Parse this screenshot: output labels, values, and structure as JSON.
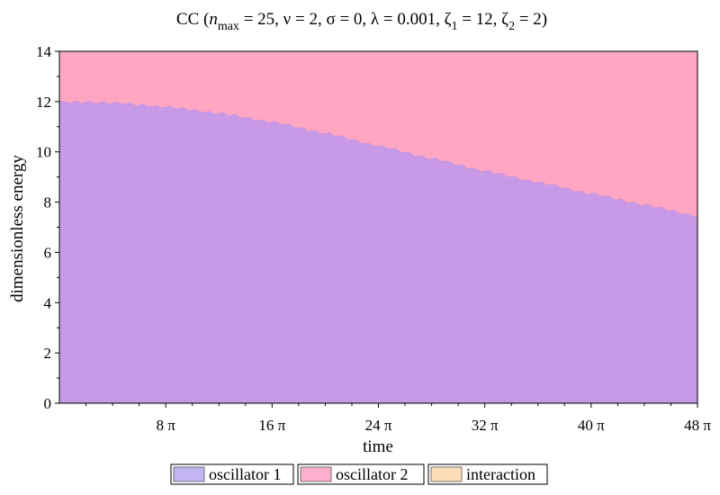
{
  "chart_data": {
    "type": "area",
    "title": {
      "prefix": "CC  (",
      "n": "n",
      "n_sub": "max",
      "rest1": " = 25, ν = 2, σ = 0, λ = 0.001, ζ",
      "zeta1_sub": "1",
      "rest2": " = 12, ζ",
      "zeta2_sub": "2",
      "rest3": " = 2)"
    },
    "xlabel": "time",
    "ylabel": "dimensionless energy",
    "xlim": [
      0,
      48
    ],
    "ylim": [
      0,
      14
    ],
    "x_unit": "π",
    "x_ticks": [
      {
        "value": 8,
        "label": "8 π"
      },
      {
        "value": 16,
        "label": "16 π"
      },
      {
        "value": 24,
        "label": "24 π"
      },
      {
        "value": 32,
        "label": "32 π"
      },
      {
        "value": 40,
        "label": "40 π"
      },
      {
        "value": 48,
        "label": "48 π"
      }
    ],
    "y_ticks": [
      {
        "value": 0,
        "label": "0"
      },
      {
        "value": 2,
        "label": "2"
      },
      {
        "value": 4,
        "label": "4"
      },
      {
        "value": 6,
        "label": "6"
      },
      {
        "value": 8,
        "label": "8"
      },
      {
        "value": 10,
        "label": "10"
      },
      {
        "value": 12,
        "label": "12"
      },
      {
        "value": 14,
        "label": "14"
      }
    ],
    "stacked": true,
    "x": [
      0,
      4,
      8,
      12,
      16,
      20,
      24,
      28,
      32,
      36,
      40,
      44,
      48
    ],
    "series": [
      {
        "name": "oscillator 1",
        "color": "#c799e6",
        "legend_color": "#c4b5f5",
        "values": [
          12.0,
          11.97,
          11.8,
          11.55,
          11.2,
          10.75,
          10.25,
          9.75,
          9.25,
          8.8,
          8.35,
          7.9,
          7.45
        ]
      },
      {
        "name": "oscillator 2",
        "color": "#ffa6c3",
        "legend_color": "#ffb0cf",
        "values": [
          2.0,
          2.03,
          2.2,
          2.45,
          2.8,
          3.25,
          3.75,
          4.25,
          4.75,
          5.2,
          5.65,
          6.1,
          6.55
        ]
      },
      {
        "name": "interaction",
        "color": "#fcd9b3",
        "legend_color": "#fcdcb7",
        "values": [
          0.001,
          0.001,
          0.001,
          0.001,
          0.001,
          0.001,
          0.001,
          0.001,
          0.001,
          0.001,
          0.001,
          0.001,
          0.001
        ]
      }
    ],
    "legend_position": "bottom",
    "grid": false
  }
}
